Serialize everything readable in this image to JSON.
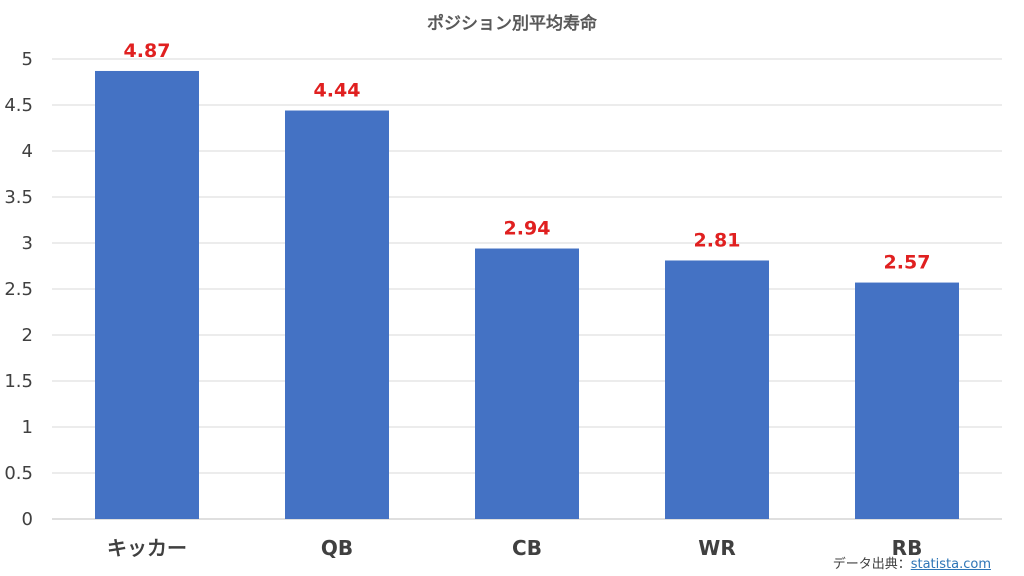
{
  "chart_data": {
    "type": "bar",
    "title": "ポジション別平均寿命",
    "categories": [
      "キッカー",
      "QB",
      "CB",
      "WR",
      "RB"
    ],
    "values": [
      4.87,
      4.44,
      2.94,
      2.81,
      2.57
    ],
    "value_labels": [
      "4.87",
      "4.44",
      "2.94",
      "2.81",
      "2.57"
    ],
    "ylim": [
      0,
      5
    ],
    "yticks": [
      "0",
      "0.5",
      "1",
      "1.5",
      "2",
      "2.5",
      "3",
      "3.5",
      "4",
      "4.5",
      "5"
    ],
    "xlabel": "",
    "ylabel": "",
    "grid": true,
    "bar_color": "#4472c4",
    "value_label_color": "#e02020"
  },
  "source": {
    "label": "データ出典：",
    "link_text": "statista.com"
  }
}
